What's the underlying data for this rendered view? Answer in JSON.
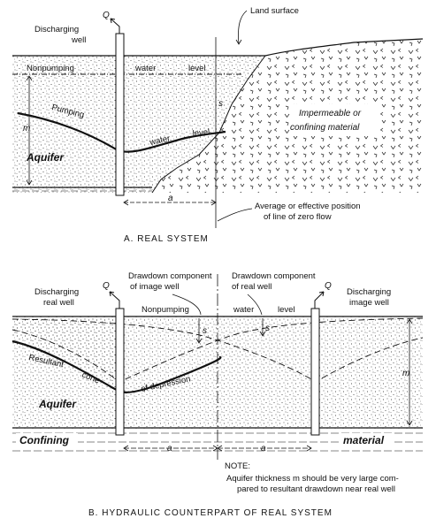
{
  "real_system": {
    "q": "Q",
    "discharging_well": [
      "Discharging",
      "well"
    ],
    "land_surface": "Land surface",
    "nonpumping": "Nonpumping",
    "water": "water",
    "level": "level",
    "pumping": "Pumping",
    "pumping_water": "water",
    "pumping_level": "level",
    "m": "m",
    "aquifer": "Aquifer",
    "impermeable": [
      "Impermeable or",
      "confining material"
    ],
    "s": "s",
    "a": "a",
    "zero_flow": [
      "Average or effective position",
      "of line of zero flow"
    ],
    "caption": "A.   REAL SYSTEM"
  },
  "hydraulic": {
    "q_left": "Q",
    "q_right": "Q",
    "discharging_real_well": [
      "Discharging",
      "real well"
    ],
    "drawdown_image": [
      "Drawdown component",
      "of image well"
    ],
    "drawdown_real": [
      "Drawdown component",
      "of real well"
    ],
    "discharging_image_well": [
      "Discharging",
      "image well"
    ],
    "nonpumping": "Nonpumping",
    "water": "water",
    "level": "level",
    "s1": "s",
    "s2": "s",
    "m": "m",
    "resultant": "Resultant",
    "cone": "cone",
    "of_depression": "of   depression",
    "aquifer": "Aquifer",
    "confining": "Confining",
    "material": "material",
    "a_left": "a",
    "a_right": "a",
    "note_title": "NOTE:",
    "note_lines": [
      "Aquifer thickness  m  should be very large com-",
      "pared to resultant drawdown near real well"
    ],
    "caption": "B.   HYDRAULIC COUNTERPART OF REAL SYSTEM"
  }
}
